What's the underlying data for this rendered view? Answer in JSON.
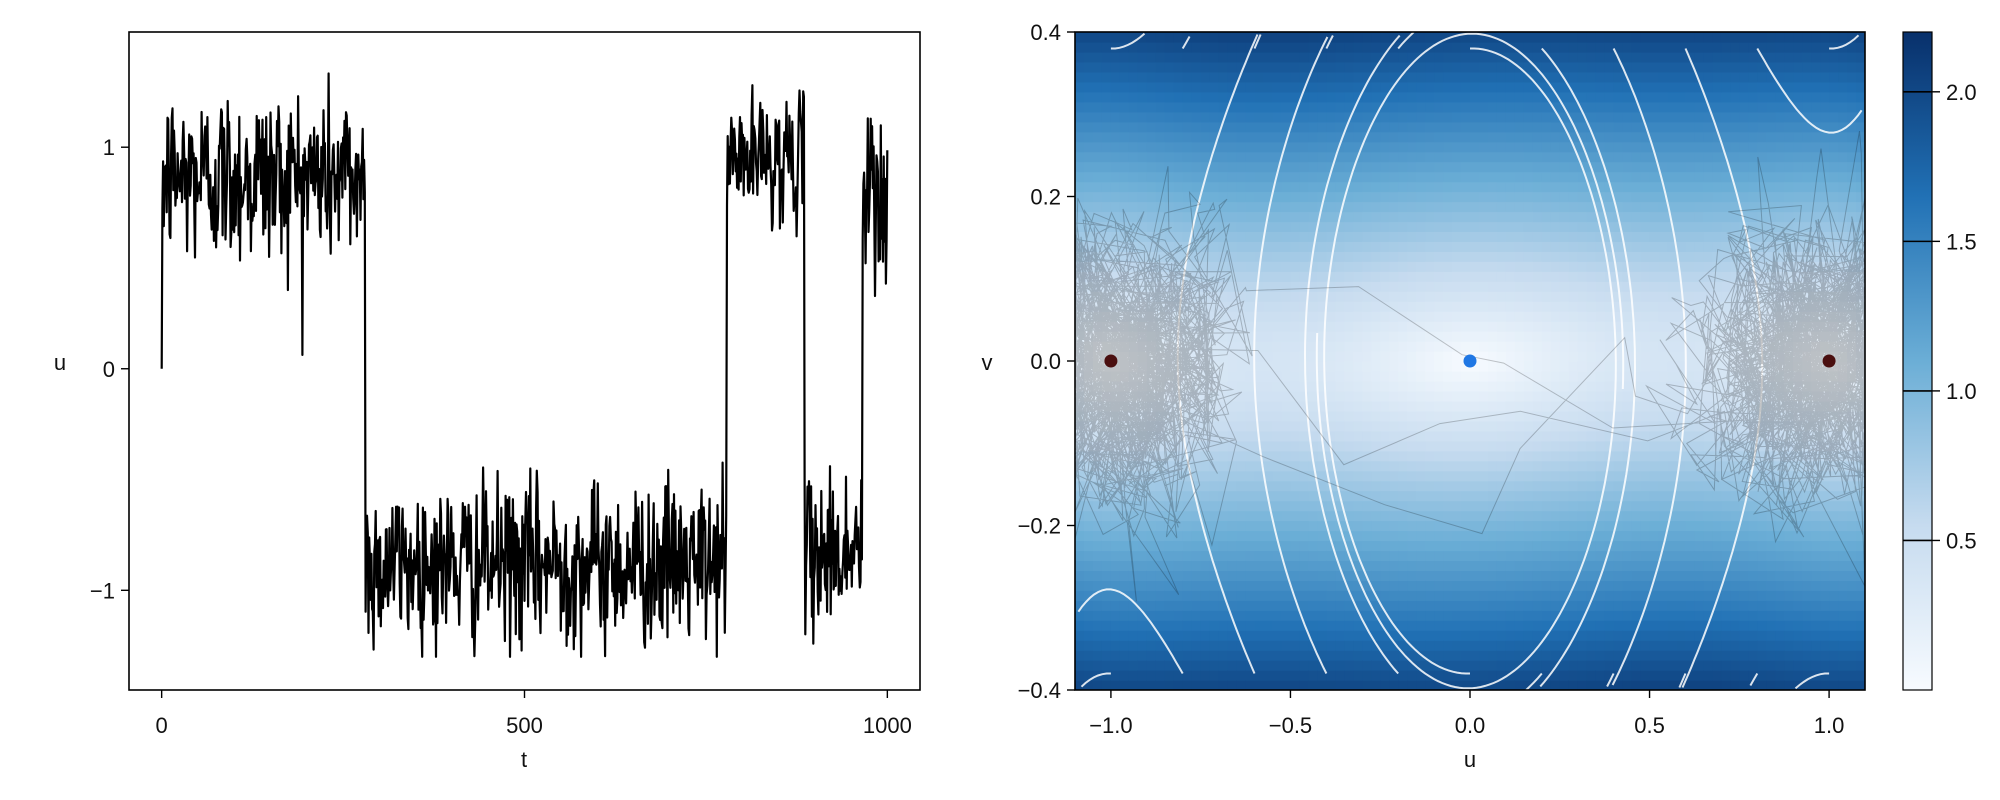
{
  "chart_data": [
    {
      "type": "line",
      "title": "",
      "xlabel": "t",
      "ylabel": "u",
      "xlim": [
        -45,
        1045
      ],
      "ylim": [
        -1.45,
        1.52
      ],
      "xticks": [
        0,
        500,
        1000
      ],
      "xtick_labels": [
        "0",
        "500",
        "1000"
      ],
      "yticks": [
        -1,
        0,
        1
      ],
      "ytick_labels": [
        "−1",
        "0",
        "1"
      ],
      "grid": false,
      "series": [
        {
          "color": "#000000",
          "segments": [
            {
              "t_start": 0,
              "t_end": 280,
              "mean": 0.87,
              "noise_sd": 0.2,
              "min": 0.0,
              "max": 1.37
            },
            {
              "t_start": 281,
              "t_end": 778,
              "mean": -0.88,
              "noise_sd": 0.18,
              "min": -1.3,
              "max": 0.0
            },
            {
              "t_start": 779,
              "t_end": 885,
              "mean": 0.95,
              "noise_sd": 0.14,
              "min": 0.5,
              "max": 1.28
            },
            {
              "t_start": 886,
              "t_end": 965,
              "mean": -0.82,
              "noise_sd": 0.18,
              "min": -1.3,
              "max": -0.25
            },
            {
              "t_start": 966,
              "t_end": 1000,
              "mean": 0.75,
              "noise_sd": 0.25,
              "min": 0.2,
              "max": 1.13
            }
          ]
        }
      ]
    },
    {
      "type": "heatmap",
      "title": "",
      "xlabel": "u",
      "ylabel": "v",
      "xlim": [
        -1.1,
        1.1
      ],
      "ylim": [
        -0.4,
        0.4
      ],
      "xticks": [
        -1.0,
        -0.5,
        0.0,
        0.5,
        1.0
      ],
      "xtick_labels": [
        "−1.0",
        "−0.5",
        "0.0",
        "0.5",
        "1.0"
      ],
      "yticks": [
        -0.4,
        -0.2,
        0.0,
        0.2,
        0.4
      ],
      "ytick_labels": [
        "−0.4",
        "−0.2",
        "0.0",
        "0.2",
        "0.4"
      ],
      "colormap": "Blues",
      "colormap_stops": [
        "#f7fbff",
        "#c6dbef",
        "#6baed6",
        "#2171b5",
        "#08306b"
      ],
      "colorbar": {
        "range": [
          0.0,
          2.2
        ],
        "ticks": [
          0.5,
          1.0,
          1.5,
          2.0
        ],
        "tick_labels": [
          "0.5",
          "1.0",
          "1.5",
          "2.0"
        ]
      },
      "overlays": {
        "streamlines_color": "#ffffff",
        "trajectory_color": "#000000",
        "fixed_points": [
          {
            "u": 0.0,
            "v": 0.0,
            "color": "#1f77e4",
            "kind": "saddle"
          },
          {
            "u": -1.0,
            "v": 0.0,
            "color": "#4a0f0f",
            "kind": "stable"
          },
          {
            "u": 1.0,
            "v": 0.0,
            "color": "#4a0f0f",
            "kind": "stable"
          }
        ]
      },
      "grid": false
    }
  ]
}
